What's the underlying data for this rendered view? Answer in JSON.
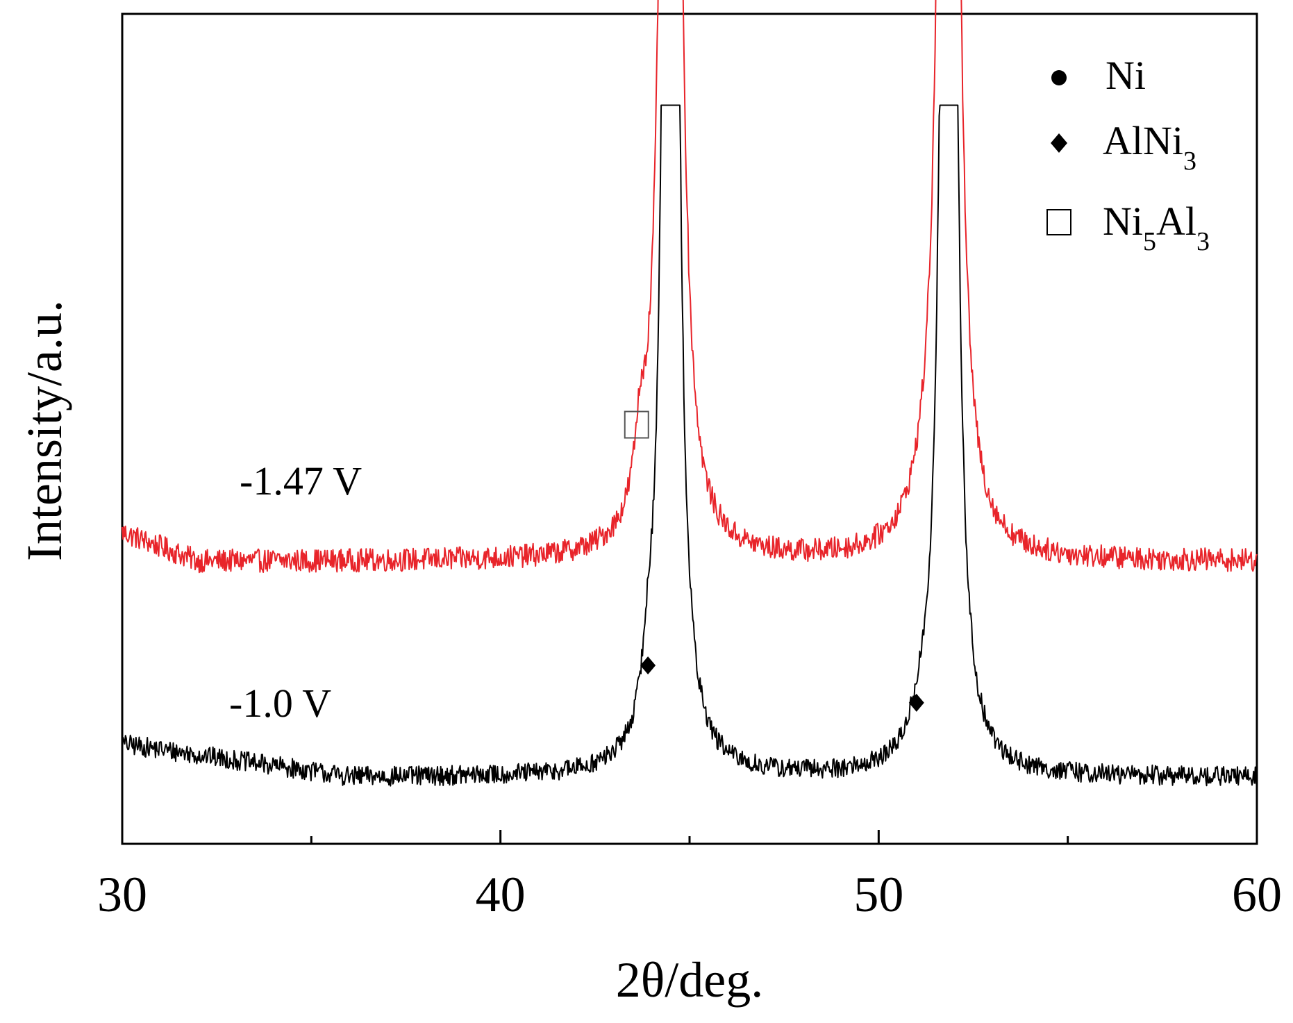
{
  "chart_data": {
    "type": "line",
    "title": "",
    "xlabel": "2θ/deg.",
    "ylabel": "Intensity/a.u.",
    "xlim": [
      30,
      60
    ],
    "ylim": [
      0,
      100
    ],
    "x_ticks": [
      30,
      40,
      50,
      60
    ],
    "x_minor_ticks": [
      35,
      45,
      55
    ],
    "y_ticks_shown": false,
    "series": [
      {
        "name": "-1.47 V",
        "label": "-1.47 V",
        "color": "#e8242a",
        "baseline": 34,
        "noise": 1.4,
        "clip_top": 113,
        "features": [
          {
            "type": "slope",
            "from_x": 30,
            "to_x": 32,
            "rise": 3.5
          },
          {
            "type": "peak",
            "x": 43.7,
            "height": 8,
            "width": 0.18
          },
          {
            "type": "peak",
            "x": 44.5,
            "height": 400,
            "width": 0.15
          },
          {
            "type": "peak",
            "x": 51.3,
            "height": 3,
            "width": 0.5
          },
          {
            "type": "peak",
            "x": 51.85,
            "height": 400,
            "width": 0.15
          }
        ]
      },
      {
        "name": "-1.0 V",
        "label": "-1.0 V",
        "color": "#000000",
        "baseline": 8,
        "noise": 1.2,
        "clip_top": 89,
        "features": [
          {
            "type": "slope",
            "from_x": 30,
            "to_x": 36,
            "rise": 4
          },
          {
            "type": "peak",
            "x": 43.9,
            "height": 6,
            "width": 0.18
          },
          {
            "type": "peak",
            "x": 44.5,
            "height": 300,
            "width": 0.15
          },
          {
            "type": "peak",
            "x": 51.1,
            "height": 3,
            "width": 0.3
          },
          {
            "type": "peak",
            "x": 51.85,
            "height": 300,
            "width": 0.15
          }
        ]
      }
    ],
    "markers": [
      {
        "phase": "Ni5Al3",
        "symbol": "open-square",
        "x": 43.6,
        "y": 50.5
      },
      {
        "phase": "AlNi3",
        "symbol": "diamond",
        "x": 43.9,
        "y": 21.5
      },
      {
        "phase": "AlNi3",
        "symbol": "diamond",
        "x": 51.0,
        "y": 17
      }
    ],
    "legend": {
      "position": "top-right",
      "entries": [
        {
          "symbol": "filled-circle",
          "label": "Ni",
          "main": "Ni",
          "subs": []
        },
        {
          "symbol": "diamond",
          "label": "AlNi3",
          "main": "AlNi",
          "subs": [
            "3"
          ]
        },
        {
          "symbol": "open-square",
          "label": "Ni5Al3",
          "main": "Ni",
          "sub1": "5",
          "main2": "Al",
          "sub2": "3"
        }
      ]
    }
  }
}
